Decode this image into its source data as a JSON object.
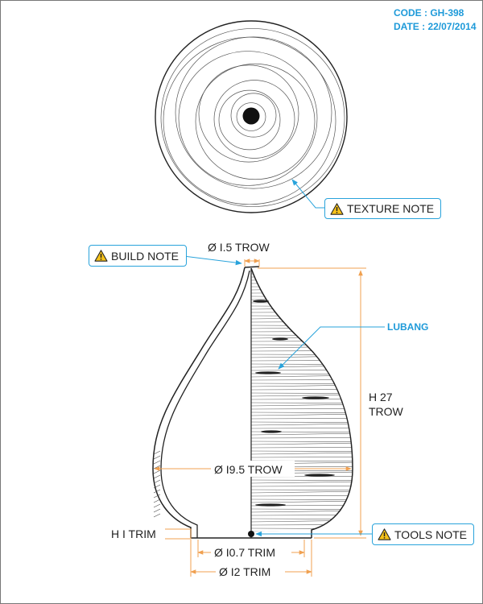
{
  "header": {
    "code": "CODE : GH-398",
    "date": "DATE : 22/07/2014"
  },
  "callouts": {
    "texture_note": "TEXTURE NOTE",
    "build_note": "BUILD NOTE",
    "tools_note": "TOOLS NOTE",
    "lubang": "LUBANG"
  },
  "dimensions": {
    "neck": "Ø I.5 TROW",
    "height_line1": "H 27",
    "height_line2": "TROW",
    "width": "Ø I9.5 TROW",
    "trim_height": "H I TRIM",
    "base_inner": "Ø I0.7 TRIM",
    "base_outer": "Ø I2 TRIM"
  },
  "colors": {
    "dimension_orange": "#f0a050",
    "callout_blue": "#29a3db",
    "code_blue": "#1e9ad9",
    "warning_yellow": "#f6c21a",
    "line_dark": "#222222"
  },
  "icons": [
    "warning-icon"
  ]
}
